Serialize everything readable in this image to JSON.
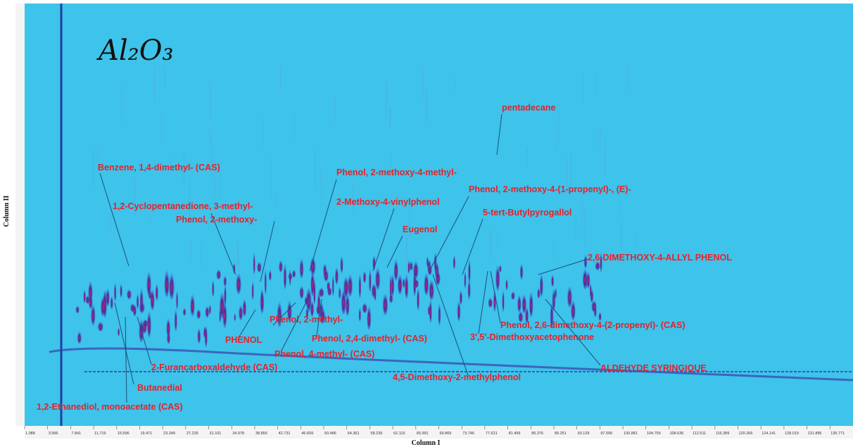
{
  "figure": {
    "title": "Al₂O₃",
    "x_axis_label": "Column I",
    "y_axis_label": "Column II",
    "x_tick_labels": [
      "1.088",
      "3.966",
      "7.841",
      "11.719",
      "15.596",
      "19.471",
      "23.349",
      "27.226",
      "31.101",
      "34.978",
      "38.856",
      "42.731",
      "46.609",
      "50.486",
      "54.361",
      "58.239",
      "62.116",
      "65.991",
      "69.869",
      "73.746",
      "77.621",
      "81.499",
      "85.376",
      "89.251",
      "93.129",
      "97.006",
      "100.881",
      "104.759",
      "108.636",
      "112.511",
      "116.389",
      "120.266",
      "124.141",
      "128.019",
      "131.896",
      "135.771"
    ],
    "annotations": [
      "Benzene, 1,4-dimethyl- (CAS)",
      "1,2-Cyclopentanedione, 3-methyl-",
      "Phenol, 2-methoxy-",
      "Phenol, 2-methoxy-4-methyl-",
      "2-Methoxy-4-vinylphenol",
      "Eugenol",
      "Phenol, 2-methoxy-4-(1-propenyl)-, (E)-",
      "5-tert-Butylpyrogallol",
      "2,6-DIMETHOXY-4-ALLYL PHENOL",
      "pentadecane",
      "PHENOL",
      "Phenol, 2-methyl-",
      "Phenol, 2,4-dimethyl- (CAS)",
      "Phenol, 4-methyl- (CAS)",
      "2-Furancarboxaldehyde (CAS)",
      "Butanedial",
      "1,2-Ethanediol, monoacetate (CAS)",
      "4,5-Dimethoxy-2-methylphenol",
      "3',5'-Dimethoxyacetophenone",
      "Phenol, 2,6-dimethoxy-4-(2-propenyl)- (CAS)",
      "ALDEHYDE SYRINGIQUE"
    ]
  }
}
